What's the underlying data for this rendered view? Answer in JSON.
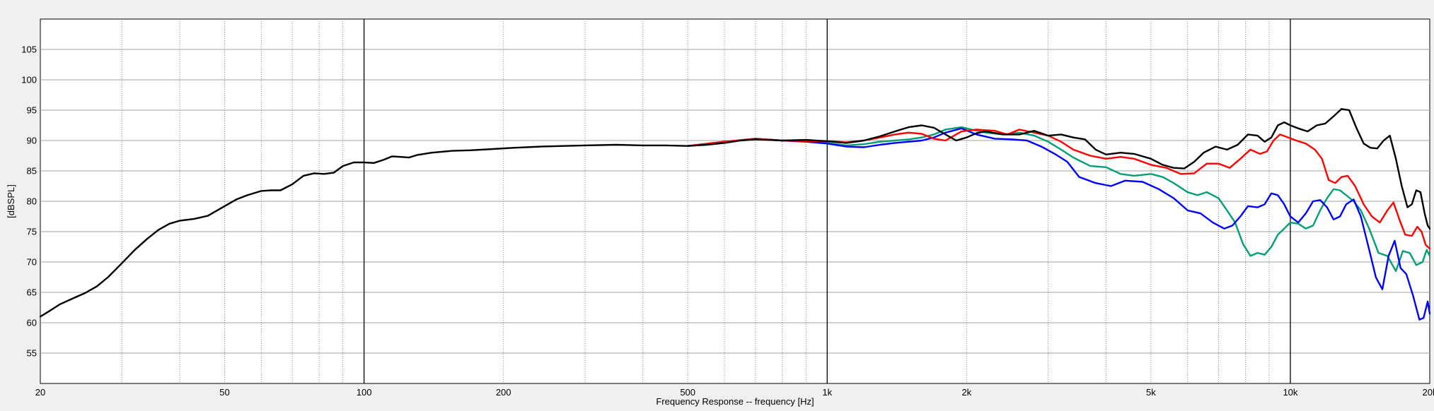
{
  "chart_data": {
    "type": "line",
    "title": "",
    "xlabel": "Frequency Response -- frequency [Hz]",
    "ylabel": "[dBSPL]",
    "x_scale": "log",
    "xlim": [
      20,
      20000
    ],
    "ylim": [
      50,
      110
    ],
    "grid": true,
    "legend": "none",
    "x_ticks": [
      {
        "value": 20,
        "label": "20"
      },
      {
        "value": 50,
        "label": "50"
      },
      {
        "value": 100,
        "label": "100"
      },
      {
        "value": 200,
        "label": "200"
      },
      {
        "value": 500,
        "label": "500"
      },
      {
        "value": 1000,
        "label": "1k"
      },
      {
        "value": 2000,
        "label": "2k"
      },
      {
        "value": 5000,
        "label": "5k"
      },
      {
        "value": 10000,
        "label": "10k"
      },
      {
        "value": 20000,
        "label": "20k"
      }
    ],
    "y_ticks": [
      55,
      60,
      65,
      70,
      75,
      80,
      85,
      90,
      95,
      100,
      105
    ],
    "series": [
      {
        "color": "#009e73",
        "points": [
          [
            500,
            89.1
          ],
          [
            600,
            89.8
          ],
          [
            700,
            90.3
          ],
          [
            800,
            90.0
          ],
          [
            900,
            89.9
          ],
          [
            1000,
            89.6
          ],
          [
            1100,
            89.2
          ],
          [
            1200,
            89.4
          ],
          [
            1300,
            89.8
          ],
          [
            1400,
            90.0
          ],
          [
            1500,
            90.2
          ],
          [
            1600,
            90.5
          ],
          [
            1700,
            91.0
          ],
          [
            1800,
            91.8
          ],
          [
            1950,
            92.2
          ],
          [
            2050,
            91.8
          ],
          [
            2200,
            91.3
          ],
          [
            2400,
            91.0
          ],
          [
            2600,
            91.3
          ],
          [
            2800,
            90.8
          ],
          [
            3000,
            89.8
          ],
          [
            3200,
            88.5
          ],
          [
            3400,
            87.2
          ],
          [
            3700,
            85.8
          ],
          [
            4000,
            85.6
          ],
          [
            4300,
            84.5
          ],
          [
            4600,
            84.2
          ],
          [
            5000,
            84.5
          ],
          [
            5300,
            84.0
          ],
          [
            5600,
            83.0
          ],
          [
            6000,
            81.5
          ],
          [
            6300,
            81.0
          ],
          [
            6600,
            81.5
          ],
          [
            7000,
            80.5
          ],
          [
            7300,
            78.5
          ],
          [
            7600,
            76.5
          ],
          [
            7900,
            73.0
          ],
          [
            8200,
            71.0
          ],
          [
            8500,
            71.5
          ],
          [
            8800,
            71.2
          ],
          [
            9100,
            72.5
          ],
          [
            9400,
            74.5
          ],
          [
            9700,
            75.5
          ],
          [
            10000,
            76.5
          ],
          [
            10400,
            76.3
          ],
          [
            10800,
            75.5
          ],
          [
            11200,
            76.0
          ],
          [
            11600,
            78.5
          ],
          [
            12000,
            80.5
          ],
          [
            12400,
            82.0
          ],
          [
            12800,
            81.8
          ],
          [
            13200,
            81.0
          ],
          [
            13700,
            80.0
          ],
          [
            14200,
            78.5
          ],
          [
            14800,
            75.5
          ],
          [
            15500,
            71.5
          ],
          [
            16200,
            71.0
          ],
          [
            16900,
            68.5
          ],
          [
            17500,
            71.8
          ],
          [
            18100,
            71.5
          ],
          [
            18700,
            69.5
          ],
          [
            19300,
            70.0
          ],
          [
            19700,
            72.0
          ],
          [
            20000,
            71.0
          ]
        ]
      },
      {
        "color": "#0000ff",
        "points": [
          [
            500,
            89.1
          ],
          [
            600,
            89.8
          ],
          [
            700,
            90.3
          ],
          [
            800,
            90.0
          ],
          [
            900,
            89.8
          ],
          [
            1000,
            89.5
          ],
          [
            1100,
            89.0
          ],
          [
            1200,
            88.9
          ],
          [
            1300,
            89.3
          ],
          [
            1400,
            89.6
          ],
          [
            1500,
            89.8
          ],
          [
            1600,
            90.0
          ],
          [
            1700,
            90.5
          ],
          [
            1800,
            91.3
          ],
          [
            1950,
            92.0
          ],
          [
            2100,
            91.0
          ],
          [
            2300,
            90.3
          ],
          [
            2500,
            90.2
          ],
          [
            2700,
            90.0
          ],
          [
            2900,
            89.0
          ],
          [
            3100,
            87.8
          ],
          [
            3300,
            86.5
          ],
          [
            3500,
            84.0
          ],
          [
            3800,
            83.0
          ],
          [
            4100,
            82.5
          ],
          [
            4400,
            83.4
          ],
          [
            4800,
            83.2
          ],
          [
            5200,
            82.0
          ],
          [
            5600,
            80.5
          ],
          [
            6000,
            78.5
          ],
          [
            6400,
            78.0
          ],
          [
            6800,
            76.5
          ],
          [
            7200,
            75.5
          ],
          [
            7500,
            76.0
          ],
          [
            7800,
            77.5
          ],
          [
            8100,
            79.2
          ],
          [
            8500,
            79.0
          ],
          [
            8800,
            79.5
          ],
          [
            9100,
            81.3
          ],
          [
            9400,
            81.0
          ],
          [
            9700,
            79.5
          ],
          [
            10000,
            77.5
          ],
          [
            10400,
            76.5
          ],
          [
            10800,
            78.0
          ],
          [
            11200,
            80.0
          ],
          [
            11600,
            80.2
          ],
          [
            12000,
            79.0
          ],
          [
            12400,
            77.0
          ],
          [
            12800,
            77.5
          ],
          [
            13200,
            79.5
          ],
          [
            13700,
            80.3
          ],
          [
            14200,
            77.5
          ],
          [
            14800,
            72.0
          ],
          [
            15300,
            67.5
          ],
          [
            15800,
            65.5
          ],
          [
            16300,
            71.0
          ],
          [
            16800,
            73.5
          ],
          [
            17300,
            69.0
          ],
          [
            17800,
            68.0
          ],
          [
            18400,
            64.5
          ],
          [
            19000,
            60.5
          ],
          [
            19400,
            60.8
          ],
          [
            19800,
            63.5
          ],
          [
            20000,
            61.5
          ]
        ]
      },
      {
        "color": "#ff0000",
        "points": [
          [
            500,
            89.1
          ],
          [
            600,
            89.8
          ],
          [
            700,
            90.3
          ],
          [
            800,
            90.0
          ],
          [
            900,
            89.9
          ],
          [
            1000,
            89.9
          ],
          [
            1100,
            89.7
          ],
          [
            1200,
            90.0
          ],
          [
            1300,
            90.5
          ],
          [
            1400,
            91.0
          ],
          [
            1500,
            91.3
          ],
          [
            1600,
            91.1
          ],
          [
            1700,
            90.3
          ],
          [
            1800,
            90.0
          ],
          [
            1950,
            91.5
          ],
          [
            2100,
            91.8
          ],
          [
            2300,
            91.6
          ],
          [
            2450,
            91.0
          ],
          [
            2600,
            91.8
          ],
          [
            2800,
            91.3
          ],
          [
            3000,
            90.8
          ],
          [
            3200,
            89.8
          ],
          [
            3400,
            88.5
          ],
          [
            3700,
            87.5
          ],
          [
            4000,
            87.0
          ],
          [
            4300,
            87.3
          ],
          [
            4600,
            87.0
          ],
          [
            5000,
            86.0
          ],
          [
            5400,
            85.5
          ],
          [
            5800,
            84.5
          ],
          [
            6200,
            84.6
          ],
          [
            6600,
            86.2
          ],
          [
            7000,
            86.2
          ],
          [
            7400,
            85.5
          ],
          [
            7800,
            87.0
          ],
          [
            8200,
            88.5
          ],
          [
            8600,
            87.8
          ],
          [
            8900,
            88.2
          ],
          [
            9200,
            90.0
          ],
          [
            9500,
            91.0
          ],
          [
            9900,
            90.5
          ],
          [
            10300,
            90.0
          ],
          [
            10800,
            89.5
          ],
          [
            11300,
            88.5
          ],
          [
            11700,
            87.0
          ],
          [
            12100,
            83.5
          ],
          [
            12500,
            83.0
          ],
          [
            12900,
            84.0
          ],
          [
            13300,
            84.2
          ],
          [
            13800,
            82.5
          ],
          [
            14400,
            79.5
          ],
          [
            15000,
            77.5
          ],
          [
            15600,
            76.5
          ],
          [
            16200,
            78.5
          ],
          [
            16700,
            79.8
          ],
          [
            17200,
            77.0
          ],
          [
            17700,
            74.5
          ],
          [
            18300,
            74.3
          ],
          [
            18800,
            75.8
          ],
          [
            19200,
            75.0
          ],
          [
            19600,
            72.8
          ],
          [
            20000,
            72.2
          ]
        ]
      },
      {
        "color": "#000000",
        "points": [
          [
            20,
            61
          ],
          [
            21,
            62
          ],
          [
            22,
            63
          ],
          [
            23.5,
            64
          ],
          [
            25,
            64.9
          ],
          [
            26.5,
            66
          ],
          [
            28,
            67.5
          ],
          [
            30,
            69.8
          ],
          [
            32,
            72
          ],
          [
            34,
            73.8
          ],
          [
            36,
            75.3
          ],
          [
            38,
            76.3
          ],
          [
            40,
            76.8
          ],
          [
            43,
            77.1
          ],
          [
            46,
            77.6
          ],
          [
            50,
            79.2
          ],
          [
            53,
            80.3
          ],
          [
            56,
            81.0
          ],
          [
            60,
            81.7
          ],
          [
            63,
            81.8
          ],
          [
            66,
            81.8
          ],
          [
            70,
            82.8
          ],
          [
            74,
            84.2
          ],
          [
            78,
            84.6
          ],
          [
            82,
            84.5
          ],
          [
            86,
            84.7
          ],
          [
            90,
            85.8
          ],
          [
            95,
            86.4
          ],
          [
            100,
            86.4
          ],
          [
            105,
            86.3
          ],
          [
            110,
            86.8
          ],
          [
            115,
            87.4
          ],
          [
            120,
            87.3
          ],
          [
            125,
            87.2
          ],
          [
            130,
            87.6
          ],
          [
            140,
            88.0
          ],
          [
            155,
            88.3
          ],
          [
            170,
            88.4
          ],
          [
            190,
            88.6
          ],
          [
            210,
            88.8
          ],
          [
            240,
            89.0
          ],
          [
            270,
            89.1
          ],
          [
            300,
            89.2
          ],
          [
            350,
            89.3
          ],
          [
            400,
            89.2
          ],
          [
            450,
            89.2
          ],
          [
            500,
            89.1
          ],
          [
            550,
            89.3
          ],
          [
            600,
            89.6
          ],
          [
            650,
            90.0
          ],
          [
            700,
            90.2
          ],
          [
            800,
            90.0
          ],
          [
            900,
            90.1
          ],
          [
            1000,
            89.9
          ],
          [
            1100,
            89.6
          ],
          [
            1200,
            90.0
          ],
          [
            1300,
            90.7
          ],
          [
            1400,
            91.5
          ],
          [
            1500,
            92.2
          ],
          [
            1600,
            92.5
          ],
          [
            1700,
            92.1
          ],
          [
            1800,
            91.0
          ],
          [
            1900,
            90.0
          ],
          [
            2000,
            90.5
          ],
          [
            2100,
            91.2
          ],
          [
            2200,
            91.5
          ],
          [
            2400,
            91.0
          ],
          [
            2600,
            91.0
          ],
          [
            2800,
            91.6
          ],
          [
            3000,
            90.8
          ],
          [
            3200,
            91.0
          ],
          [
            3400,
            90.5
          ],
          [
            3600,
            90.2
          ],
          [
            3800,
            88.5
          ],
          [
            4000,
            87.7
          ],
          [
            4300,
            88.0
          ],
          [
            4600,
            87.8
          ],
          [
            5000,
            87.0
          ],
          [
            5300,
            86.0
          ],
          [
            5600,
            85.5
          ],
          [
            5900,
            85.4
          ],
          [
            6200,
            86.5
          ],
          [
            6500,
            88.0
          ],
          [
            6900,
            89.0
          ],
          [
            7300,
            88.5
          ],
          [
            7700,
            89.3
          ],
          [
            8100,
            91.0
          ],
          [
            8500,
            90.8
          ],
          [
            8800,
            89.8
          ],
          [
            9100,
            90.5
          ],
          [
            9400,
            92.5
          ],
          [
            9700,
            93.0
          ],
          [
            10000,
            92.5
          ],
          [
            10400,
            92.0
          ],
          [
            10900,
            91.5
          ],
          [
            11400,
            92.5
          ],
          [
            11900,
            92.8
          ],
          [
            12400,
            94.0
          ],
          [
            12900,
            95.2
          ],
          [
            13400,
            95.0
          ],
          [
            13900,
            92.0
          ],
          [
            14400,
            89.5
          ],
          [
            14900,
            88.8
          ],
          [
            15400,
            88.7
          ],
          [
            15900,
            90.0
          ],
          [
            16400,
            90.8
          ],
          [
            16900,
            87.0
          ],
          [
            17400,
            82.5
          ],
          [
            17900,
            79.0
          ],
          [
            18300,
            79.5
          ],
          [
            18700,
            81.8
          ],
          [
            19100,
            81.5
          ],
          [
            19500,
            78.0
          ],
          [
            19800,
            76.0
          ],
          [
            20000,
            75.5
          ]
        ]
      }
    ]
  }
}
